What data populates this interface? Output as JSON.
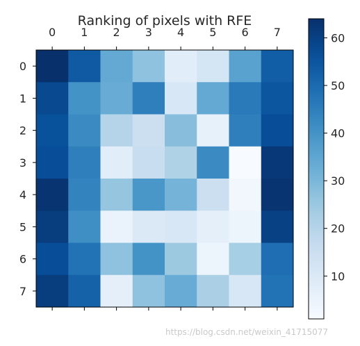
{
  "chart_data": {
    "type": "heatmap",
    "title": "Ranking of pixels with RFE",
    "colormap": "Blues",
    "x_ticks": [
      "0",
      "1",
      "2",
      "3",
      "4",
      "5",
      "6",
      "7"
    ],
    "y_ticks": [
      "0",
      "1",
      "2",
      "3",
      "4",
      "5",
      "6",
      "7"
    ],
    "x_axis_position": "top",
    "colorbar": {
      "position": "right",
      "range": [
        1,
        64
      ],
      "ticks": [
        "10",
        "20",
        "30",
        "40",
        "50",
        "60"
      ]
    },
    "values": [
      [
        64,
        54,
        34,
        27,
        8,
        12,
        36,
        53
      ],
      [
        58,
        40,
        33,
        45,
        11,
        34,
        46,
        55
      ],
      [
        56,
        42,
        20,
        15,
        28,
        6,
        45,
        57
      ],
      [
        57,
        45,
        8,
        16,
        21,
        42,
        1,
        62
      ],
      [
        63,
        44,
        26,
        39,
        31,
        15,
        3,
        63
      ],
      [
        61,
        41,
        5,
        10,
        11,
        7,
        4,
        60
      ],
      [
        57,
        48,
        27,
        40,
        25,
        4,
        23,
        49
      ],
      [
        61,
        52,
        7,
        27,
        33,
        22,
        11,
        48
      ]
    ],
    "grid": false
  },
  "watermark": "https://blog.csdn.net/weixin_41715077"
}
